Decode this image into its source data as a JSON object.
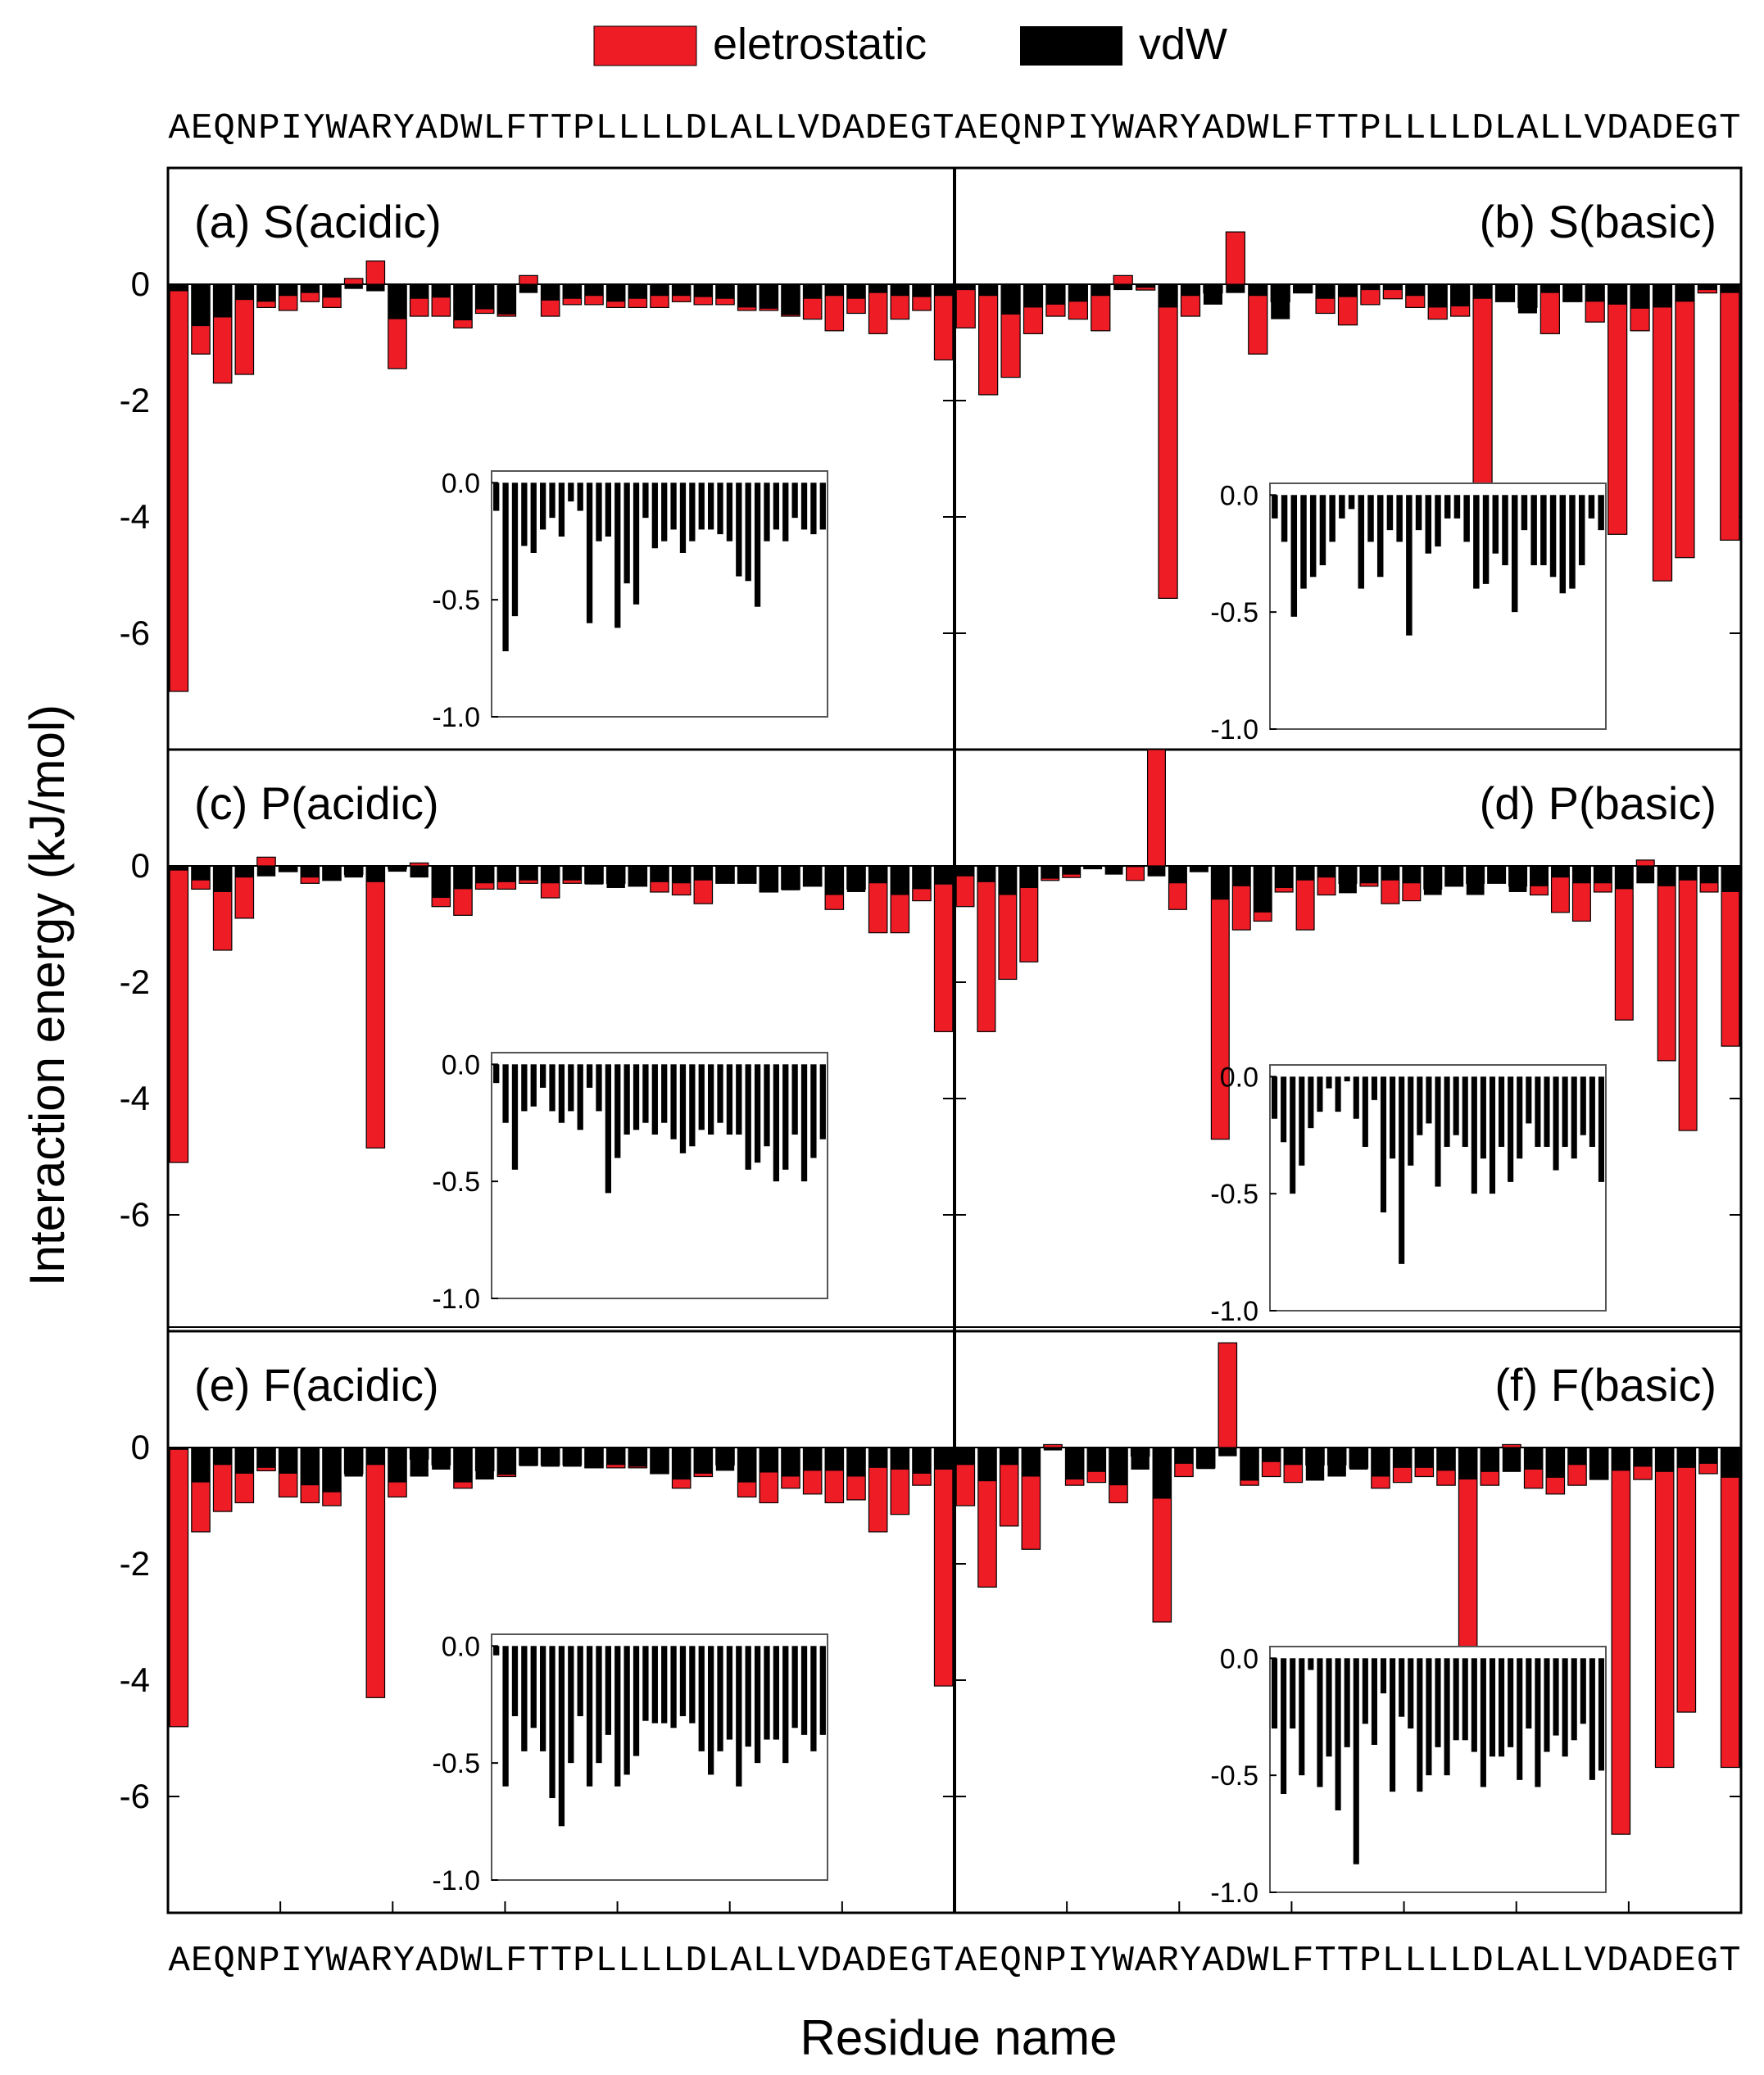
{
  "colors": {
    "electrostatic": "#ee1c25",
    "vdw": "#000000",
    "frame": "#000000"
  },
  "legend": {
    "electrostatic_label": "eletrostatic",
    "vdw_label": "vdW"
  },
  "ylabel": "Interaction energy (kJ/mol)",
  "xlabel": "Residue name",
  "sequence": "AEQNPIYWARYADWLFTTPLLLLDLALLVDADEGT",
  "chart_data": {
    "type": "bar",
    "ylim": [
      -8,
      2
    ],
    "yticks": [
      0,
      -2,
      -4,
      -6
    ],
    "inset_ylim": [
      -1.0,
      0.05
    ],
    "inset_yticks": [
      "0.0",
      "-0.5",
      "-1.0"
    ],
    "inset_ytick_values": [
      0.0,
      -0.5,
      -1.0
    ],
    "panels": [
      {
        "label": "(a) S(acidic)",
        "elec": [
          -7.0,
          -1.2,
          -1.7,
          -1.55,
          -0.4,
          -0.45,
          -0.3,
          -0.4,
          0.1,
          0.4,
          -1.45,
          -0.55,
          -0.55,
          -0.75,
          -0.5,
          -0.55,
          0.15,
          -0.55,
          -0.35,
          -0.35,
          -0.4,
          -0.4,
          -0.4,
          -0.3,
          -0.35,
          -0.35,
          -0.45,
          -0.45,
          -0.55,
          -0.6,
          -0.8,
          -0.5,
          -0.85,
          -0.6,
          -0.45,
          -1.3
        ],
        "vdw": [
          -0.12,
          -0.72,
          -0.57,
          -0.27,
          -0.3,
          -0.2,
          -0.15,
          -0.23,
          -0.08,
          -0.12,
          -0.6,
          -0.25,
          -0.23,
          -0.62,
          -0.43,
          -0.52,
          -0.15,
          -0.28,
          -0.25,
          -0.2,
          -0.3,
          -0.25,
          -0.2,
          -0.2,
          -0.22,
          -0.25,
          -0.4,
          -0.42,
          -0.53,
          -0.25,
          -0.2,
          -0.25,
          -0.15,
          -0.2,
          -0.22,
          -0.2
        ]
      },
      {
        "label": "(b) S(basic)",
        "elec": [
          -0.75,
          -1.9,
          -1.6,
          -0.85,
          -0.55,
          -0.6,
          -0.8,
          0.15,
          -0.1,
          -5.4,
          -0.55,
          -0.15,
          0.9,
          -1.2,
          -0.3,
          -0.15,
          -0.5,
          -0.7,
          -0.35,
          -0.25,
          -0.4,
          -0.6,
          -0.55,
          -3.75,
          -0.3,
          -0.4,
          -0.85,
          -0.3,
          -0.65,
          -4.3,
          -0.8,
          -5.1,
          -4.7,
          -0.15,
          -4.4
        ],
        "vdw": [
          -0.1,
          -0.2,
          -0.52,
          -0.4,
          -0.35,
          -0.3,
          -0.2,
          -0.1,
          -0.06,
          -0.4,
          -0.2,
          -0.35,
          -0.15,
          -0.2,
          -0.6,
          -0.15,
          -0.25,
          -0.22,
          -0.1,
          -0.1,
          -0.2,
          -0.4,
          -0.38,
          -0.25,
          -0.3,
          -0.5,
          -0.15,
          -0.3,
          -0.3,
          -0.35,
          -0.42,
          -0.4,
          -0.3,
          -0.1,
          -0.15
        ]
      },
      {
        "label": "(c) P(acidic)",
        "elec": [
          -5.1,
          -0.4,
          -1.45,
          -0.9,
          0.15,
          -0.1,
          -0.3,
          -0.25,
          -0.15,
          -4.85,
          -0.05,
          0.05,
          -0.7,
          -0.85,
          -0.4,
          -0.4,
          -0.3,
          -0.55,
          -0.3,
          -0.3,
          -0.3,
          -0.35,
          -0.45,
          -0.5,
          -0.65,
          -0.3,
          -0.3,
          -0.45,
          -0.4,
          -0.35,
          -0.75,
          -0.4,
          -1.15,
          -1.15,
          -0.6,
          -2.85
        ],
        "vdw": [
          -0.08,
          -0.25,
          -0.45,
          -0.2,
          -0.18,
          -0.1,
          -0.2,
          -0.25,
          -0.2,
          -0.28,
          -0.1,
          -0.2,
          -0.55,
          -0.4,
          -0.3,
          -0.28,
          -0.25,
          -0.3,
          -0.25,
          -0.32,
          -0.38,
          -0.35,
          -0.28,
          -0.3,
          -0.25,
          -0.3,
          -0.3,
          -0.45,
          -0.42,
          -0.35,
          -0.5,
          -0.45,
          -0.3,
          -0.5,
          -0.4,
          -0.32
        ]
      },
      {
        "label": "(d) P(basic)",
        "elec": [
          -0.7,
          -2.85,
          -1.95,
          -1.65,
          -0.25,
          -0.2,
          -0.05,
          0.0,
          -0.25,
          2.1,
          -0.75,
          -0.1,
          -4.7,
          -1.1,
          -0.95,
          -0.45,
          -1.1,
          -0.5,
          -0.3,
          -0.35,
          -0.65,
          -0.6,
          -0.4,
          -0.35,
          -0.3,
          -0.3,
          -0.35,
          -0.5,
          -0.8,
          -0.95,
          -0.45,
          -2.65,
          0.1,
          -3.35,
          -4.55,
          -0.45,
          -3.1
        ],
        "vdw": [
          -0.18,
          -0.28,
          -0.5,
          -0.38,
          -0.22,
          -0.15,
          -0.05,
          -0.15,
          -0.02,
          -0.18,
          -0.3,
          -0.1,
          -0.58,
          -0.35,
          -0.8,
          -0.38,
          -0.25,
          -0.2,
          -0.47,
          -0.3,
          -0.25,
          -0.3,
          -0.5,
          -0.35,
          -0.5,
          -0.3,
          -0.45,
          -0.35,
          -0.2,
          -0.3,
          -0.3,
          -0.4,
          -0.3,
          -0.35,
          -0.25,
          -0.3,
          -0.45
        ]
      },
      {
        "label": "(e) F(acidic)",
        "elec": [
          -4.8,
          -1.45,
          -1.1,
          -0.95,
          -0.4,
          -0.85,
          -0.95,
          -1.0,
          -0.45,
          -4.3,
          -0.85,
          -0.2,
          -0.3,
          -0.7,
          -0.4,
          -0.5,
          -0.3,
          -0.3,
          -0.3,
          -0.35,
          -0.35,
          -0.35,
          -0.45,
          -0.7,
          -0.5,
          -0.3,
          -0.85,
          -0.95,
          -0.7,
          -0.8,
          -0.95,
          -0.9,
          -1.45,
          -1.15,
          -0.65,
          -4.1
        ],
        "vdw": [
          -0.04,
          -0.6,
          -0.3,
          -0.45,
          -0.35,
          -0.45,
          -0.65,
          -0.77,
          -0.5,
          -0.3,
          -0.6,
          -0.5,
          -0.38,
          -0.6,
          -0.55,
          -0.47,
          -0.32,
          -0.33,
          -0.33,
          -0.35,
          -0.3,
          -0.33,
          -0.45,
          -0.55,
          -0.45,
          -0.4,
          -0.6,
          -0.43,
          -0.5,
          -0.4,
          -0.4,
          -0.5,
          -0.35,
          -0.38,
          -0.45,
          -0.38
        ]
      },
      {
        "label": "(f) F(basic)",
        "elec": [
          -1.0,
          -2.4,
          -1.35,
          -1.75,
          0.05,
          -0.65,
          -0.6,
          -0.95,
          -0.15,
          -3.0,
          -0.5,
          -0.35,
          1.8,
          -0.65,
          -0.5,
          -0.6,
          -0.3,
          -0.3,
          -0.35,
          -0.7,
          -0.6,
          -0.5,
          -0.65,
          -4.05,
          -0.65,
          0.05,
          -0.7,
          -0.8,
          -0.65,
          -0.55,
          -6.65,
          -0.55,
          -5.5,
          -4.55,
          -0.45,
          -5.5
        ],
        "vdw": [
          -0.3,
          -0.58,
          -0.3,
          -0.5,
          -0.05,
          -0.55,
          -0.42,
          -0.65,
          -0.38,
          -0.88,
          -0.28,
          -0.37,
          -0.15,
          -0.57,
          -0.25,
          -0.3,
          -0.57,
          -0.5,
          -0.38,
          -0.5,
          -0.35,
          -0.35,
          -0.4,
          -0.55,
          -0.42,
          -0.42,
          -0.38,
          -0.52,
          -0.3,
          -0.55,
          -0.4,
          -0.33,
          -0.42,
          -0.35,
          -0.28,
          -0.52,
          -0.48
        ]
      }
    ]
  }
}
